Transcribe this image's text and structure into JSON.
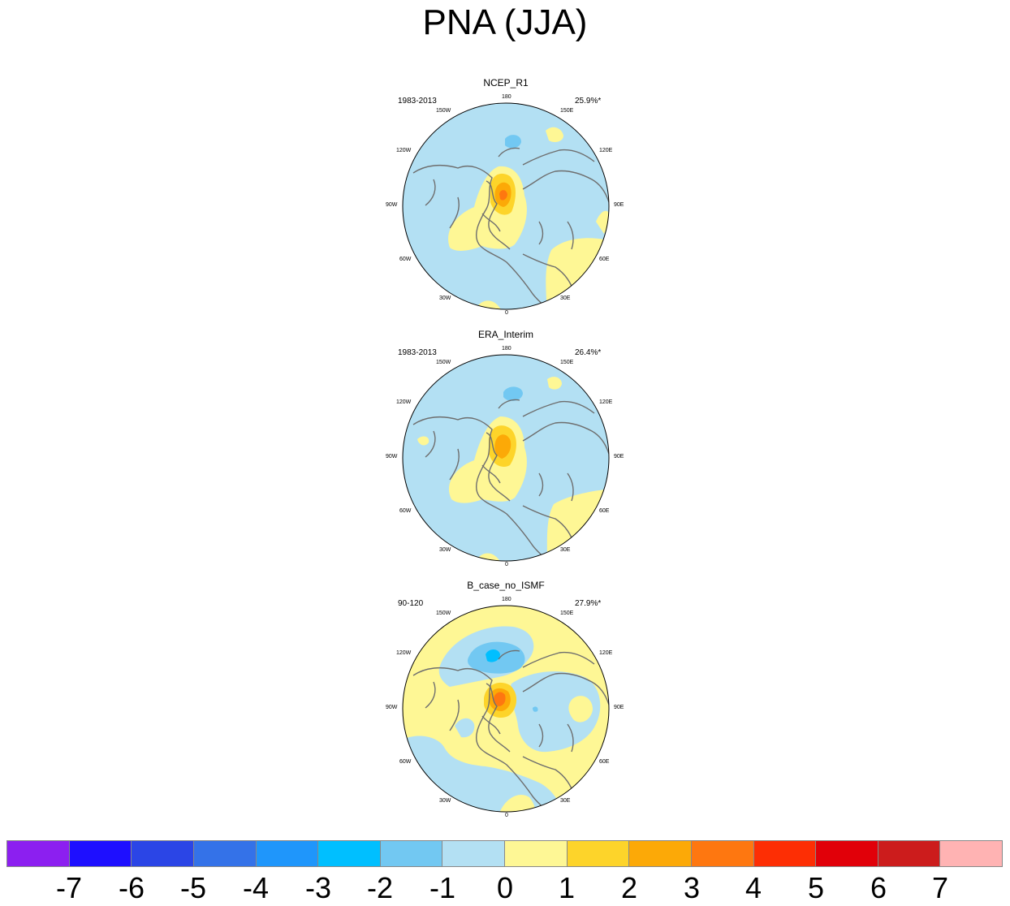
{
  "title": "PNA (JJA)",
  "panels": [
    {
      "name": "NCEP_R1",
      "period": "1983-2013",
      "variance": "25.9%*"
    },
    {
      "name": "ERA_Interim",
      "period": "1983-2013",
      "variance": "26.4%*"
    },
    {
      "name": "B_case_no_ISMF",
      "period": "90-120",
      "variance": "27.9%*"
    }
  ],
  "lon_labels": [
    "180",
    "150W",
    "150E",
    "120W",
    "120E",
    "90W",
    "90E",
    "60W",
    "60E",
    "30W",
    "30E",
    "0"
  ],
  "colorbar": {
    "colors": [
      "#8c1ff0",
      "#1e0fff",
      "#2b45e6",
      "#3472e8",
      "#1f96fb",
      "#00bfff",
      "#72c8f2",
      "#b3e0f3",
      "#fef795",
      "#fdd42a",
      "#fca907",
      "#fe7710",
      "#fd2e04",
      "#e10009",
      "#cc1c1c",
      "#ffb3b3"
    ],
    "ticks": [
      "-7",
      "-6",
      "-5",
      "-4",
      "-3",
      "-2",
      "-1",
      "0",
      "1",
      "2",
      "3",
      "4",
      "5",
      "6",
      "7"
    ]
  },
  "fill_colors": {
    "ocean": "#b3e0f3",
    "positive1": "#fef795",
    "positive2": "#fdd42a",
    "positive3": "#fca907",
    "positive4": "#fe7710",
    "negative2": "#72c8f2",
    "coast": "#6e6e6e"
  }
}
